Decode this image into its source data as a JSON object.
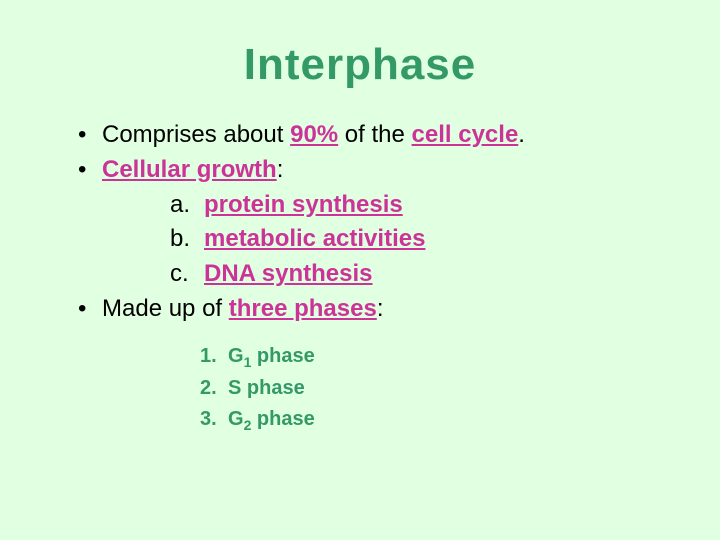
{
  "colors": {
    "background": "#e1ffe1",
    "title": "#339966",
    "body_text": "#000000",
    "highlight": "#cc3399",
    "phase_text": "#339966"
  },
  "typography": {
    "title_fontfamily": "Arial Black, Arial Bold, Arial, sans-serif",
    "title_fontsize_pt": 33,
    "title_weight": 900,
    "body_fontfamily": "Arial, Helvetica, sans-serif",
    "body_fontsize_pt": 18,
    "numlist_fontsize_pt": 15
  },
  "title": "Interphase",
  "bullets": {
    "b1": {
      "dot": "•",
      "pre": "Comprises about ",
      "hl1": "90%",
      "mid": " of the ",
      "hl2": "cell cycle",
      "post": "."
    },
    "b2": {
      "dot": "•",
      "hl": "Cellular growth",
      "post": ":"
    },
    "sub": {
      "a": {
        "label": "a.",
        "text": "protein synthesis"
      },
      "b": {
        "label": "b.",
        "text": "metabolic activities"
      },
      "c": {
        "label": "c.",
        "text": "DNA synthesis"
      }
    },
    "b3": {
      "dot": "•",
      "pre": "Made up of ",
      "hl": "three phases",
      "post": ":"
    }
  },
  "phases": {
    "p1": {
      "num": "1.",
      "g": "G",
      "sub": "1",
      "rest": " phase"
    },
    "p2": {
      "num": "2.",
      "text": "S phase"
    },
    "p3": {
      "num": "3.",
      "g": "G",
      "sub": "2",
      "rest": " phase"
    }
  }
}
